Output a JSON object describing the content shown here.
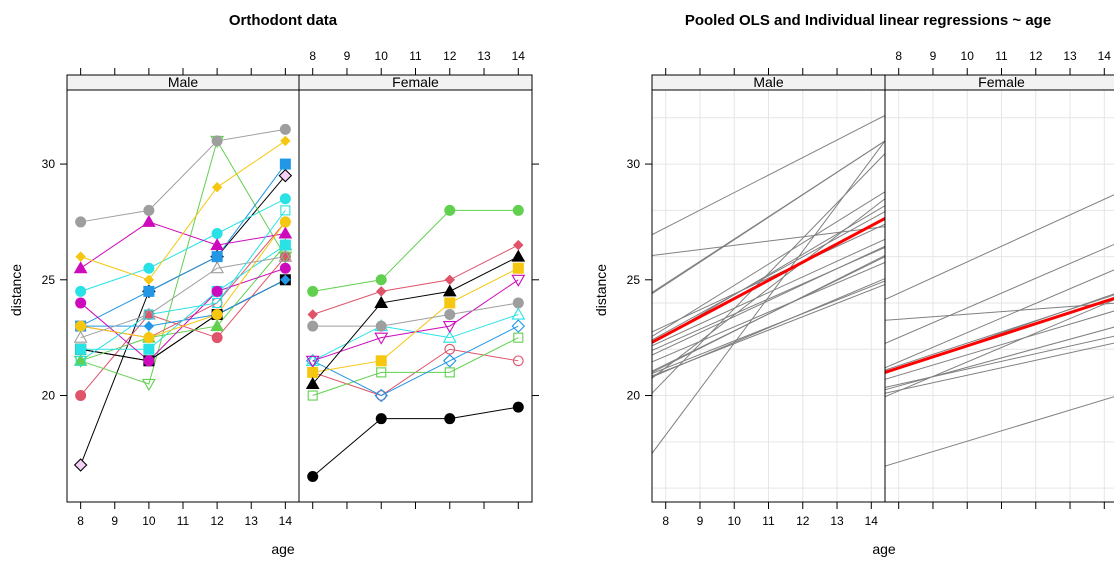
{
  "chart_data": [
    {
      "type": "line",
      "title": "Orthodont data",
      "xlabel": "age",
      "ylabel": "distance",
      "x_ticks": [
        8,
        9,
        10,
        11,
        12,
        13,
        14
      ],
      "y_ticks": [
        20,
        25,
        30
      ],
      "panels": [
        {
          "strip": "Male",
          "series": [
            {
              "color": "#000000",
              "marker": "square",
              "x": [
                8,
                10,
                12,
                14
              ],
              "y": [
                22.0,
                21.5,
                23.5,
                25.0
              ]
            },
            {
              "color": "#000000",
              "marker": "diamond-open",
              "fill": "#f4d0f4",
              "x": [
                8,
                10,
                12,
                14
              ],
              "y": [
                17.0,
                24.5,
                26.0,
                29.5
              ]
            },
            {
              "color": "#df536b",
              "marker": "circle",
              "x": [
                8,
                10,
                12,
                14
              ],
              "y": [
                20.0,
                23.5,
                22.5,
                26.0
              ]
            },
            {
              "color": "#61d04f",
              "marker": "triangle-down-open",
              "x": [
                8,
                10,
                12,
                14
              ],
              "y": [
                21.5,
                20.5,
                31.0,
                26.0
              ]
            },
            {
              "color": "#2297e6",
              "marker": "square",
              "x": [
                8,
                10,
                12,
                14
              ],
              "y": [
                23.0,
                24.5,
                26.0,
                30.0
              ]
            },
            {
              "color": "#28e2e5",
              "marker": "circle",
              "x": [
                8,
                10,
                12,
                14
              ],
              "y": [
                24.5,
                25.5,
                27.0,
                28.5
              ]
            },
            {
              "color": "#cd0bbc",
              "marker": "triangle",
              "x": [
                8,
                10,
                12,
                14
              ],
              "y": [
                25.5,
                27.5,
                26.5,
                27.0
              ]
            },
            {
              "color": "#f5c710",
              "marker": "diamond",
              "x": [
                8,
                10,
                12,
                14
              ],
              "y": [
                26.0,
                25.0,
                29.0,
                31.0
              ]
            },
            {
              "color": "#9e9e9e",
              "marker": "circle",
              "x": [
                8,
                10,
                12,
                14
              ],
              "y": [
                27.5,
                28.0,
                31.0,
                31.5
              ]
            },
            {
              "color": "#000000",
              "marker": "circle-small",
              "x": [
                8,
                10,
                12,
                14
              ],
              "y": [
                22.0,
                21.5,
                23.5,
                25.0
              ]
            },
            {
              "color": "#df536b",
              "marker": "circle-open",
              "x": [
                8,
                10,
                12,
                14
              ],
              "y": [
                23.0,
                22.5,
                24.0,
                27.5
              ]
            },
            {
              "color": "#61d04f",
              "marker": "triangle",
              "x": [
                8,
                10,
                12,
                14
              ],
              "y": [
                21.5,
                22.5,
                23.0,
                26.5
              ]
            },
            {
              "color": "#2297e6",
              "marker": "diamond",
              "x": [
                8,
                10,
                12,
                14
              ],
              "y": [
                23.0,
                23.0,
                23.5,
                25.0
              ]
            },
            {
              "color": "#28e2e5",
              "marker": "square",
              "x": [
                8,
                10,
                12,
                14
              ],
              "y": [
                22.0,
                22.0,
                24.5,
                26.5
              ]
            },
            {
              "color": "#cd0bbc",
              "marker": "circle",
              "x": [
                8,
                10,
                12,
                14
              ],
              "y": [
                24.0,
                21.5,
                24.5,
                25.5
              ]
            },
            {
              "color": "#f5c710",
              "marker": "circle",
              "x": [
                8,
                10,
                12,
                14
              ],
              "y": [
                23.0,
                22.5,
                23.5,
                27.5
              ]
            },
            {
              "color": "#9e9e9e",
              "marker": "triangle-open",
              "x": [
                8,
                10,
                12,
                14
              ],
              "y": [
                22.5,
                23.5,
                25.5,
                26.0
              ]
            },
            {
              "color": "#28e2e5",
              "marker": "square-open",
              "x": [
                8,
                10,
                12,
                14
              ],
              "y": [
                21.5,
                23.5,
                24.0,
                28.0
              ]
            }
          ]
        },
        {
          "strip": "Female",
          "series": [
            {
              "color": "#000000",
              "marker": "circle",
              "x": [
                8,
                10,
                12,
                14
              ],
              "y": [
                16.5,
                19.0,
                19.0,
                19.5
              ]
            },
            {
              "color": "#df536b",
              "marker": "circle-open",
              "x": [
                8,
                10,
                12,
                14
              ],
              "y": [
                21.0,
                20.0,
                22.0,
                21.5
              ]
            },
            {
              "color": "#61d04f",
              "marker": "square-open",
              "x": [
                8,
                10,
                12,
                14
              ],
              "y": [
                20.0,
                21.0,
                21.0,
                22.5
              ]
            },
            {
              "color": "#2297e6",
              "marker": "diamond-open",
              "x": [
                8,
                10,
                12,
                14
              ],
              "y": [
                21.5,
                20.0,
                21.5,
                23.0
              ]
            },
            {
              "color": "#28e2e5",
              "marker": "triangle-open",
              "x": [
                8,
                10,
                12,
                14
              ],
              "y": [
                21.5,
                23.0,
                22.5,
                23.5
              ]
            },
            {
              "color": "#cd0bbc",
              "marker": "triangle-down-open",
              "x": [
                8,
                10,
                12,
                14
              ],
              "y": [
                21.5,
                22.5,
                23.0,
                25.0
              ]
            },
            {
              "color": "#f5c710",
              "marker": "square",
              "x": [
                8,
                10,
                12,
                14
              ],
              "y": [
                21.0,
                21.5,
                24.0,
                25.5
              ]
            },
            {
              "color": "#9e9e9e",
              "marker": "circle",
              "x": [
                8,
                10,
                12,
                14
              ],
              "y": [
                23.0,
                23.0,
                23.5,
                24.0
              ]
            },
            {
              "color": "#000000",
              "marker": "triangle",
              "x": [
                8,
                10,
                12,
                14
              ],
              "y": [
                20.5,
                24.0,
                24.5,
                26.0
              ]
            },
            {
              "color": "#df536b",
              "marker": "diamond",
              "x": [
                8,
                10,
                12,
                14
              ],
              "y": [
                23.5,
                24.5,
                25.0,
                26.5
              ]
            },
            {
              "color": "#61d04f",
              "marker": "circle",
              "x": [
                8,
                10,
                12,
                14
              ],
              "y": [
                24.5,
                25.0,
                28.0,
                28.0
              ]
            }
          ]
        }
      ]
    },
    {
      "type": "line",
      "title": "Pooled OLS and Individual linear regressions ~ age",
      "xlabel": "age",
      "ylabel": "distance",
      "x_ticks": [
        8,
        9,
        10,
        11,
        12,
        13,
        14
      ],
      "y_ticks": [
        20,
        25,
        30
      ],
      "grid": true,
      "panels": [
        {
          "strip": "Male",
          "pooled": {
            "color": "#ff0000",
            "at_x_min": 22.3,
            "at_x_max": 27.65
          },
          "individual": {
            "color": "#808080",
            "lines": [
              [
                26.95,
                32.1
              ],
              [
                24.45,
                31.0
              ],
              [
                24.4,
                31.0
              ],
              [
                26.05,
                27.3
              ],
              [
                22.75,
                27.4
              ],
              [
                22.55,
                28.8
              ],
              [
                22.4,
                27.95
              ],
              [
                22.25,
                28.2
              ],
              [
                22.15,
                26.75
              ],
              [
                21.95,
                26.4
              ],
              [
                21.75,
                26.45
              ],
              [
                21.45,
                25.75
              ],
              [
                21.05,
                26.0
              ],
              [
                21.0,
                26.05
              ],
              [
                20.95,
                24.95
              ],
              [
                20.85,
                24.8
              ],
              [
                20.8,
                25.05
              ],
              [
                20.75,
                28.5
              ],
              [
                20.1,
                30.45
              ],
              [
                17.5,
                31.0
              ]
            ]
          }
        },
        {
          "strip": "Female",
          "pooled": {
            "color": "#ff0000",
            "at_x_min": 21.0,
            "at_x_max": 24.25
          },
          "individual": {
            "color": "#808080",
            "lines": [
              [
                24.15,
                28.75
              ],
              [
                23.25,
                24.0
              ],
              [
                22.25,
                26.6
              ],
              [
                21.2,
                25.5
              ],
              [
                21.1,
                24.4
              ],
              [
                20.95,
                24.45
              ],
              [
                20.7,
                23.7
              ],
              [
                20.35,
                22.6
              ],
              [
                20.25,
                23.0
              ],
              [
                20.1,
                22.3
              ],
              [
                19.95,
                24.2
              ],
              [
                16.95,
                20.0
              ]
            ]
          }
        }
      ]
    }
  ]
}
